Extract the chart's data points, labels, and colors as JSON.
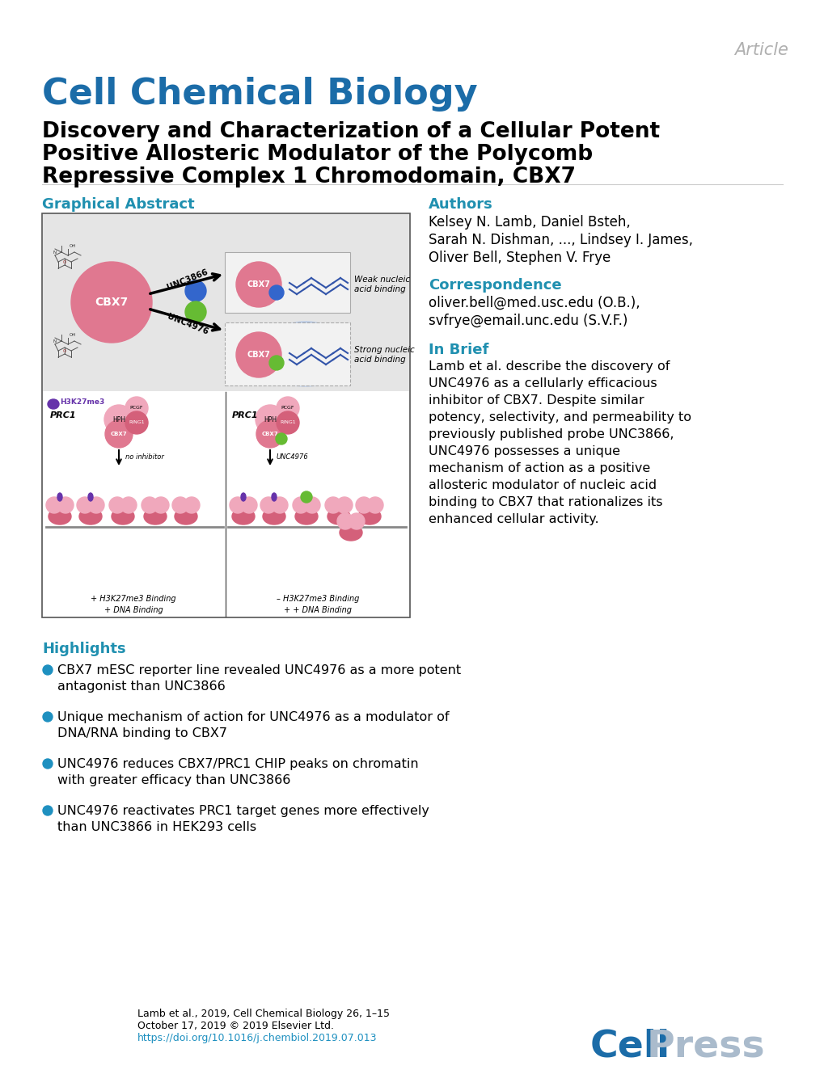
{
  "article_label": "Article",
  "journal_name": "Cell Chemical Biology",
  "title_line1": "Discovery and Characterization of a Cellular Potent",
  "title_line2": "Positive Allosteric Modulator of the Polycomb",
  "title_line3": "Repressive Complex 1 Chromodomain, CBX7",
  "section_graphical_abstract": "Graphical Abstract",
  "section_authors": "Authors",
  "authors_line1": "Kelsey N. Lamb, Daniel Bsteh,",
  "authors_line2": "Sarah N. Dishman, ..., Lindsey I. James,",
  "authors_line3": "Oliver Bell, Stephen V. Frye",
  "section_correspondence": "Correspondence",
  "corr_line1": "oliver.bell@med.usc.edu (O.B.),",
  "corr_line2": "svfrye@email.unc.edu (S.V.F.)",
  "section_inbrief": "In Brief",
  "inbrief_line1": "Lamb et al. describe the discovery of",
  "inbrief_line2": "UNC4976 as a cellularly efficacious",
  "inbrief_line3": "inhibitor of CBX7. Despite similar",
  "inbrief_line4": "potency, selectivity, and permeability to",
  "inbrief_line5": "previously published probe UNC3866,",
  "inbrief_line6": "UNC4976 possesses a unique",
  "inbrief_line7": "mechanism of action as a positive",
  "inbrief_line8": "allosteric modulator of nucleic acid",
  "inbrief_line9": "binding to CBX7 that rationalizes its",
  "inbrief_line10": "enhanced cellular activity.",
  "section_highlights": "Highlights",
  "highlight1a": "CBX7 mESC reporter line revealed UNC4976 as a more potent",
  "highlight1b": "antagonist than UNC3866",
  "highlight2a": "Unique mechanism of action for UNC4976 as a modulator of",
  "highlight2b": "DNA/RNA binding to CBX7",
  "highlight3a": "UNC4976 reduces CBX7/PRC1 CHIP peaks on chromatin",
  "highlight3b": "with greater efficacy than UNC3866",
  "highlight4a": "UNC4976 reactivates PRC1 target genes more effectively",
  "highlight4b": "than UNC3866 in HEK293 cells",
  "footer_citation": "Lamb et al., 2019, Cell Chemical Biology 26, 1–15",
  "footer_date": "October 17, 2019 © 2019 Elsevier Ltd.",
  "footer_doi": "https://doi.org/10.1016/j.chembiol.2019.07.013",
  "blue_color": "#1B6CA8",
  "teal_color": "#2090B0",
  "link_blue": "#1E90C0",
  "background": "#FFFFFF",
  "article_gray": "#B0B0B0",
  "pink_dark": "#D4607A",
  "pink_light": "#F0A8BC",
  "pink_med": "#E07890",
  "green_dot": "#66BB33",
  "blue_dot": "#3366CC",
  "purple": "#6633AA",
  "gray_bg": "#E5E5E5",
  "gray_line": "#888888"
}
